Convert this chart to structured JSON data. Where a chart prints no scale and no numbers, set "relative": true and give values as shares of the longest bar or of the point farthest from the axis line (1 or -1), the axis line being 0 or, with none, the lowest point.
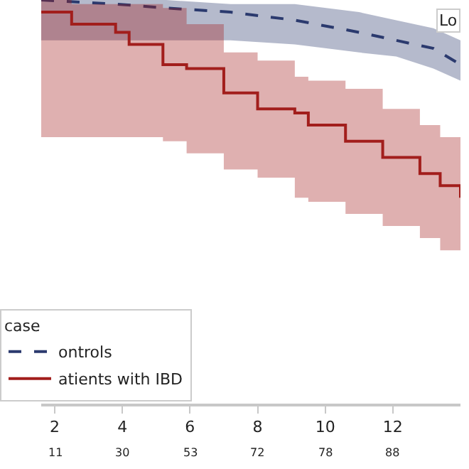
{
  "chart_data": {
    "type": "line",
    "relative": true,
    "legend_title": "case",
    "legend": "bottom left",
    "tick_labels": "x",
    "xlim": [
      1.6,
      14.0
    ],
    "xticks": [
      2,
      4,
      6,
      8,
      10,
      12
    ],
    "annotations": [
      "Lo",
      "11",
      "30",
      "53",
      "72",
      "78",
      "88"
    ],
    "series": [
      {
        "name": "ontrols",
        "line_style": "dashed",
        "color": "#2b3a6e",
        "x": [
          1.6,
          3.8,
          5.3,
          7.2,
          9.1,
          11.0,
          12.1,
          13.2,
          14.0
        ],
        "values": [
          1.0,
          0.99,
          0.98,
          0.97,
          0.95,
          0.92,
          0.9,
          0.88,
          0.84
        ],
        "upper": [
          1.0,
          1.0,
          1.0,
          0.99,
          0.99,
          0.97,
          0.95,
          0.93,
          0.9
        ],
        "lower": [
          0.9,
          0.9,
          0.9,
          0.9,
          0.89,
          0.87,
          0.86,
          0.83,
          0.8
        ]
      },
      {
        "name": "atients with IBD",
        "type": "step",
        "line_style": "solid",
        "color": "#a21e1c",
        "x": [
          1.6,
          2.5,
          3.8,
          4.2,
          5.2,
          5.9,
          7.0,
          8.0,
          9.1,
          9.5,
          10.6,
          11.7,
          12.8,
          13.4,
          14.0
        ],
        "values": [
          0.97,
          0.94,
          0.92,
          0.89,
          0.84,
          0.83,
          0.77,
          0.73,
          0.72,
          0.69,
          0.65,
          0.61,
          0.57,
          0.54,
          0.51
        ],
        "upper": [
          1.0,
          0.99,
          0.99,
          0.99,
          0.98,
          0.94,
          0.87,
          0.85,
          0.81,
          0.8,
          0.78,
          0.73,
          0.69,
          0.66,
          0.63
        ],
        "lower": [
          0.66,
          0.66,
          0.66,
          0.66,
          0.65,
          0.62,
          0.58,
          0.56,
          0.51,
          0.5,
          0.47,
          0.44,
          0.41,
          0.38,
          0.34
        ]
      }
    ]
  }
}
